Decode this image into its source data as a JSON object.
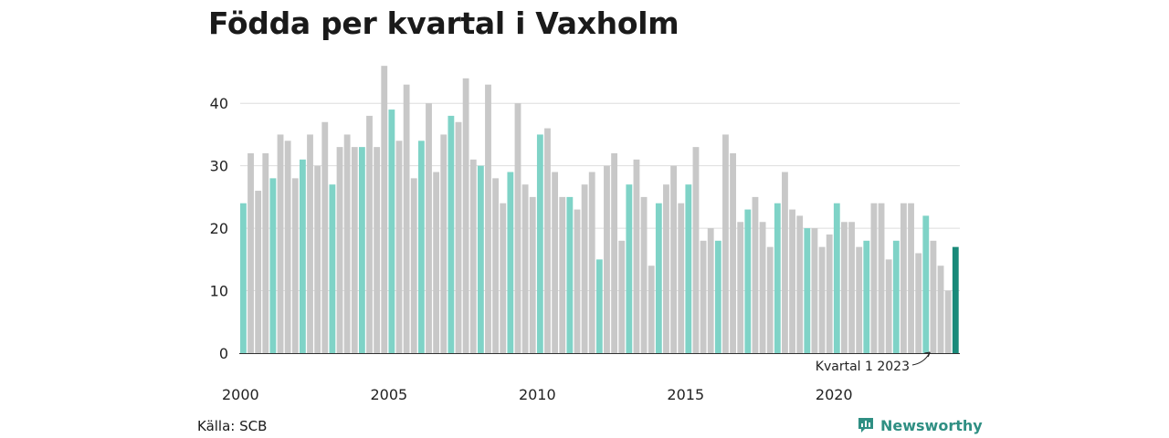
{
  "title": "Födda per kvartal i Vaxholm",
  "source": "Källa: SCB",
  "brand": {
    "name": "Newsworthy",
    "icon": "newsworthy-logo-icon"
  },
  "colors": {
    "highlight": "#7fd3c7",
    "default": "#c8c8c8",
    "latest": "#1a8a7a",
    "grid": "#dddddd",
    "brand": "#2f8f83"
  },
  "chart_data": {
    "type": "bar",
    "title": "Födda per kvartal i Vaxholm",
    "xlabel": "",
    "ylabel": "",
    "ylim": [
      0,
      45
    ],
    "yticks": [
      0,
      10,
      20,
      30,
      40
    ],
    "grid": true,
    "x_tick_labels": [
      "2000",
      "2005",
      "2010",
      "2015",
      "2020"
    ],
    "start": "2000 Q1",
    "values": [
      24,
      32,
      26,
      32,
      28,
      35,
      34,
      28,
      31,
      35,
      30,
      37,
      27,
      33,
      35,
      33,
      33,
      38,
      33,
      46,
      39,
      34,
      43,
      28,
      34,
      40,
      29,
      35,
      38,
      37,
      44,
      31,
      30,
      43,
      28,
      24,
      29,
      40,
      27,
      25,
      35,
      36,
      29,
      25,
      25,
      23,
      27,
      29,
      15,
      30,
      32,
      18,
      27,
      31,
      25,
      14,
      24,
      27,
      30,
      24,
      27,
      33,
      18,
      20,
      18,
      35,
      32,
      21,
      23,
      25,
      21,
      17,
      24,
      29,
      23,
      22,
      20,
      20,
      17,
      19,
      24,
      21,
      21,
      17,
      18,
      24,
      24,
      15,
      18,
      24,
      24,
      16,
      22,
      18,
      14,
      10,
      17
    ],
    "highlight_indices": [
      0,
      4,
      8,
      12,
      16,
      20,
      24,
      28,
      32,
      36,
      40,
      44,
      48,
      52,
      56,
      60,
      64,
      68,
      72,
      76,
      80,
      84,
      88,
      92
    ],
    "latest_index": 96,
    "annotation": {
      "text": "Kvartal 1 2023"
    }
  }
}
